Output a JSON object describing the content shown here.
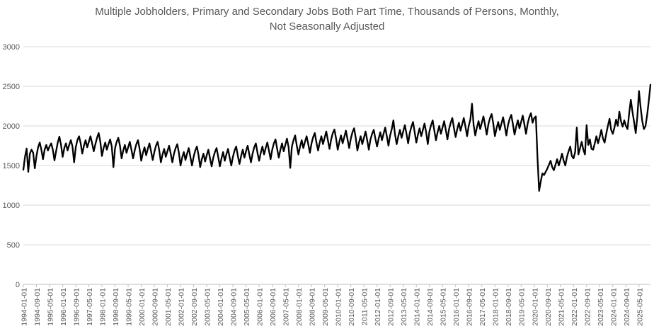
{
  "chart": {
    "title_line1": "Multiple Jobholders, Primary and Secondary Jobs Both Part Time, Thousands of Persons, Monthly,",
    "title_line2": "Not Seasonally Adjusted"
  },
  "chart_data": {
    "type": "line",
    "title": "Multiple Jobholders, Primary and Secondary Jobs Both Part Time, Thousands of Persons, Monthly, Not Seasonally Adjusted",
    "xlabel": "",
    "ylabel": "",
    "ylim": [
      0,
      3000
    ],
    "y_ticks": [
      0,
      500,
      1000,
      1500,
      2000,
      2500,
      3000
    ],
    "grid": "horizontal",
    "legend": "none",
    "x_start": "1994-01-01",
    "x_freq": "monthly",
    "x_tick_interval_months": 8,
    "x_tick_labels": [
      "1994-01-01",
      "1994-09-01",
      "1995-05-01",
      "1996-01-01",
      "1996-09-01",
      "1997-05-01",
      "1998-01-01",
      "1998-09-01",
      "1999-05-01",
      "2000-01-01",
      "2000-09-01",
      "2001-05-01",
      "2002-01-01",
      "2002-09-01",
      "2003-05-01",
      "2004-01-01",
      "2004-09-01",
      "2005-05-01",
      "2006-01-01",
      "2006-09-01",
      "2007-05-01",
      "2008-01-01",
      "2008-09-01",
      "2009-05-01",
      "2010-01-01",
      "2010-09-01",
      "2011-05-01",
      "2012-01-01",
      "2012-09-01",
      "2013-05-01",
      "2014-01-01",
      "2014-09-01",
      "2015-05-01",
      "2016-01-01",
      "2016-09-01",
      "2017-05-01",
      "2018-01-01",
      "2018-09-01",
      "2019-05-01",
      "2020-01-01",
      "2020-09-01",
      "2021-05-01",
      "2022-01-01",
      "2022-09-01",
      "2023-05-01",
      "2024-01-01",
      "2024-09-01",
      "2025-05-01"
    ],
    "series": [
      {
        "name": "Multiple jobholders, primary and secondary jobs both part time (thousands)",
        "color": "#000000",
        "values": [
          1447,
          1610,
          1715,
          1420,
          1650,
          1700,
          1660,
          1465,
          1620,
          1730,
          1790,
          1700,
          1580,
          1700,
          1760,
          1690,
          1740,
          1780,
          1700,
          1565,
          1680,
          1790,
          1865,
          1760,
          1610,
          1720,
          1780,
          1690,
          1760,
          1820,
          1740,
          1540,
          1730,
          1820,
          1870,
          1780,
          1650,
          1750,
          1820,
          1730,
          1800,
          1870,
          1780,
          1680,
          1770,
          1850,
          1910,
          1800,
          1620,
          1720,
          1790,
          1700,
          1770,
          1830,
          1740,
          1480,
          1720,
          1800,
          1850,
          1750,
          1590,
          1690,
          1760,
          1660,
          1730,
          1800,
          1700,
          1590,
          1690,
          1770,
          1820,
          1710,
          1560,
          1660,
          1730,
          1630,
          1710,
          1780,
          1680,
          1570,
          1670,
          1750,
          1800,
          1690,
          1540,
          1640,
          1710,
          1610,
          1680,
          1750,
          1650,
          1540,
          1650,
          1720,
          1770,
          1660,
          1500,
          1600,
          1670,
          1570,
          1650,
          1720,
          1610,
          1500,
          1610,
          1690,
          1740,
          1630,
          1480,
          1580,
          1650,
          1550,
          1630,
          1700,
          1590,
          1490,
          1600,
          1670,
          1720,
          1610,
          1490,
          1590,
          1670,
          1560,
          1640,
          1710,
          1600,
          1500,
          1610,
          1690,
          1740,
          1620,
          1520,
          1620,
          1700,
          1600,
          1680,
          1750,
          1640,
          1540,
          1650,
          1730,
          1780,
          1660,
          1560,
          1660,
          1740,
          1640,
          1720,
          1790,
          1690,
          1580,
          1700,
          1780,
          1830,
          1710,
          1600,
          1700,
          1780,
          1680,
          1760,
          1840,
          1730,
          1470,
          1740,
          1820,
          1880,
          1750,
          1640,
          1740,
          1820,
          1720,
          1800,
          1870,
          1770,
          1660,
          1780,
          1860,
          1910,
          1790,
          1690,
          1790,
          1870,
          1770,
          1850,
          1930,
          1820,
          1710,
          1830,
          1910,
          1955,
          1840,
          1700,
          1800,
          1880,
          1780,
          1860,
          1940,
          1830,
          1720,
          1840,
          1920,
          1970,
          1850,
          1690,
          1790,
          1870,
          1770,
          1850,
          1930,
          1820,
          1700,
          1830,
          1900,
          1950,
          1840,
          1740,
          1840,
          1920,
          1820,
          1900,
          1980,
          1870,
          1750,
          1880,
          1960,
          2070,
          1890,
          1770,
          1870,
          1950,
          1850,
          1930,
          2010,
          1900,
          1780,
          1910,
          1990,
          2050,
          1920,
          1790,
          1890,
          1970,
          1870,
          1950,
          2030,
          1920,
          1770,
          1930,
          2010,
          2070,
          1940,
          1820,
          1920,
          2000,
          1900,
          1980,
          2060,
          1950,
          1830,
          1960,
          2040,
          2100,
          1970,
          1860,
          1960,
          2040,
          1940,
          2020,
          2100,
          1990,
          1870,
          2000,
          2080,
          2280,
          2010,
          1880,
          1980,
          2060,
          1960,
          2040,
          2120,
          2010,
          1890,
          2020,
          2100,
          2150,
          2030,
          1870,
          1970,
          2050,
          1950,
          2030,
          2110,
          2000,
          1880,
          2010,
          2090,
          2140,
          2020,
          1890,
          1990,
          2070,
          1970,
          2050,
          2130,
          2020,
          1900,
          2030,
          2110,
          2160,
          2040,
          2100,
          2120,
          1600,
          1180,
          1300,
          1400,
          1380,
          1420,
          1460,
          1510,
          1560,
          1480,
          1440,
          1510,
          1580,
          1500,
          1570,
          1650,
          1560,
          1500,
          1610,
          1680,
          1740,
          1620,
          1590,
          1670,
          1980,
          1640,
          1720,
          1800,
          1700,
          1640,
          2010,
          1760,
          1830,
          1710,
          1700,
          1780,
          1870,
          1780,
          1860,
          1950,
          1840,
          1790,
          1900,
          2000,
          2090,
          1950,
          1900,
          1980,
          2080,
          2000,
          2180,
          2060,
          1990,
          2070,
          2000,
          1960,
          2160,
          2330,
          2180,
          2050,
          1910,
          2120,
          2440,
          2230,
          2060,
          1960,
          2000,
          2140,
          2320,
          2520
        ]
      }
    ],
    "colors": {
      "line": "#000000",
      "gridline": "#d9d9d9",
      "axis": "#bfbfbf",
      "label": "#595959"
    }
  }
}
